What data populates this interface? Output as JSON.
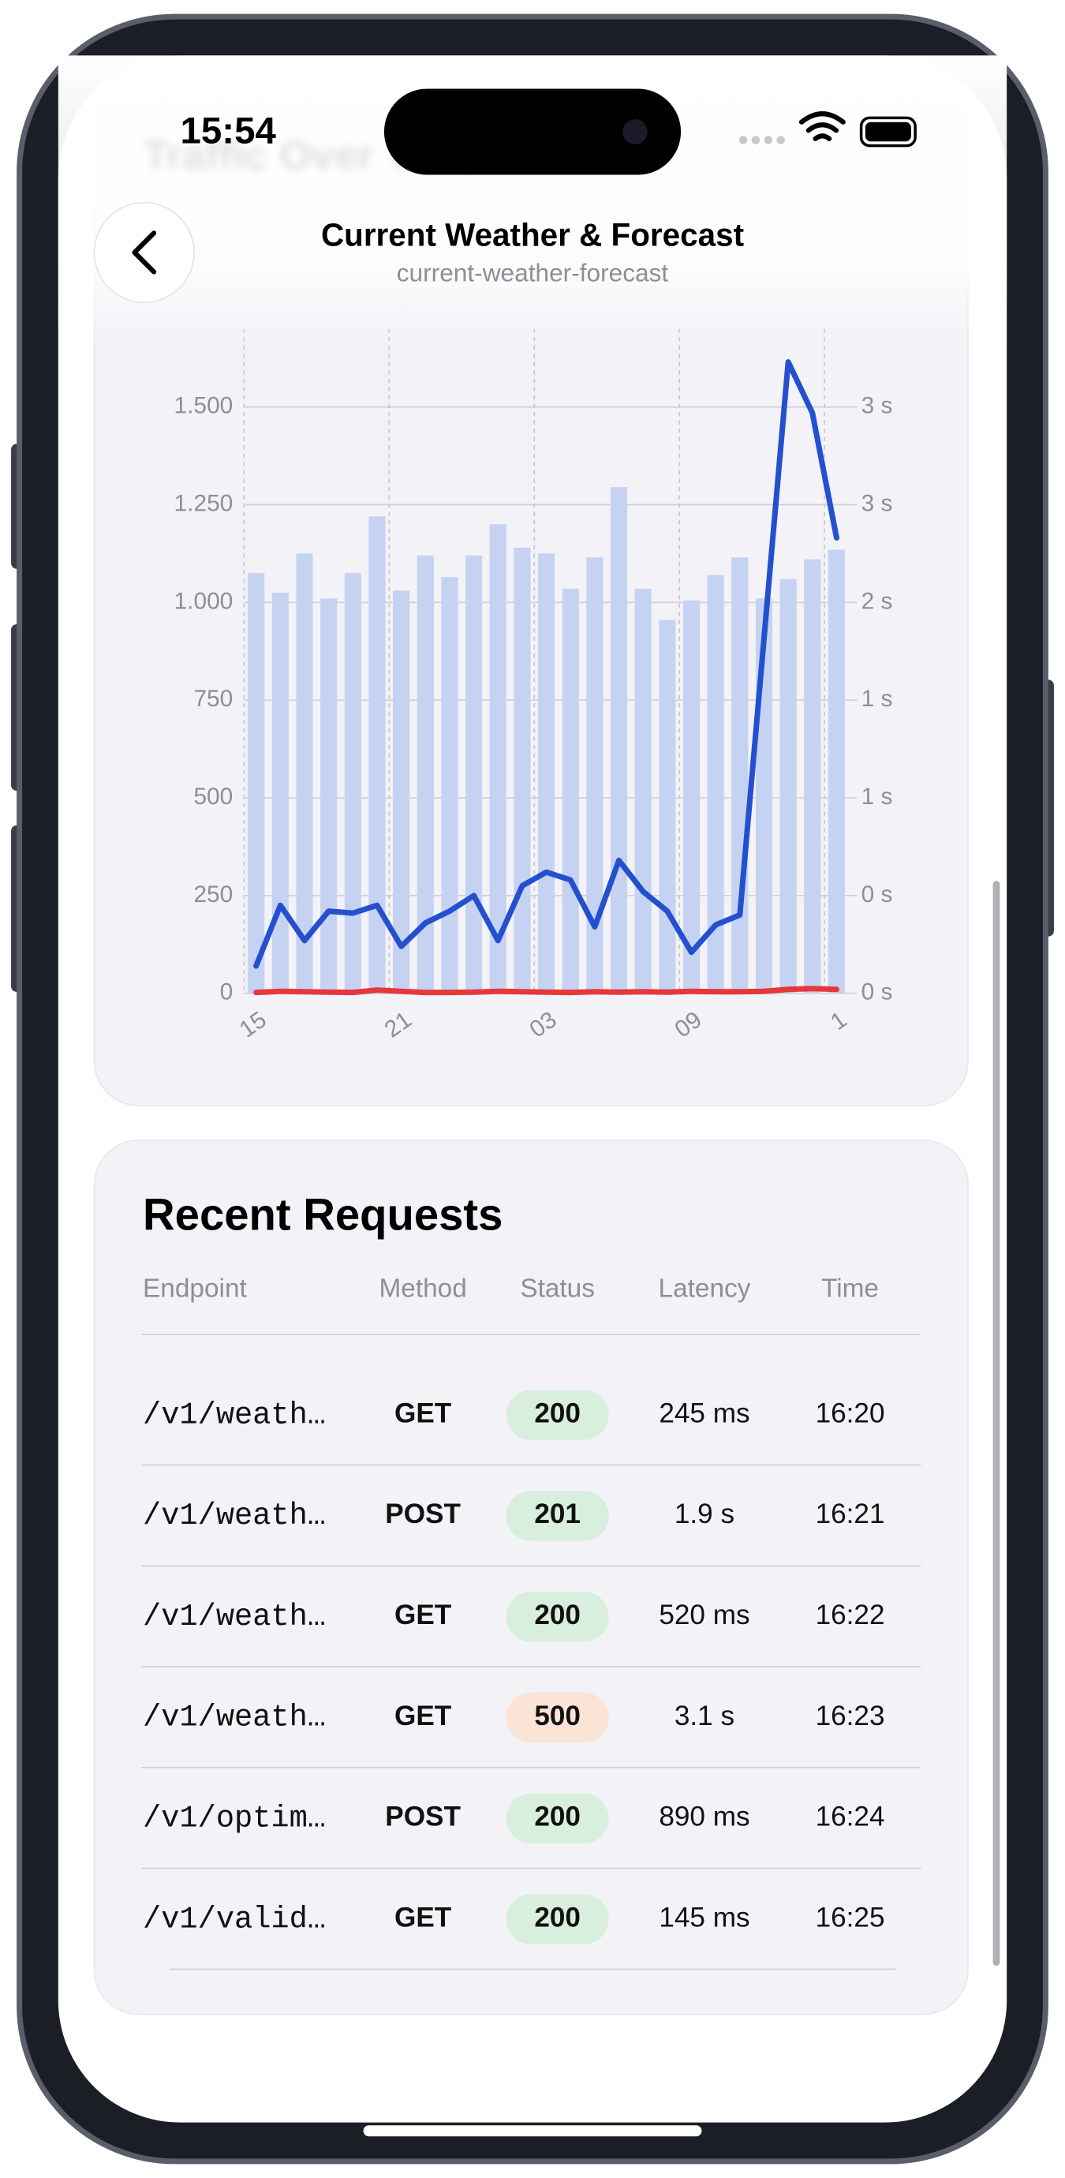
{
  "status_bar": {
    "time": "15:54"
  },
  "header": {
    "title": "Current Weather & Forecast",
    "subtitle": "current-weather-forecast"
  },
  "chart_data": {
    "type": "bar",
    "title": "Traffic Over Time",
    "categories": [
      "15",
      null,
      null,
      null,
      null,
      null,
      "21",
      null,
      null,
      null,
      null,
      null,
      "03",
      null,
      null,
      null,
      null,
      null,
      "09",
      null,
      null,
      null,
      null,
      null,
      "1"
    ],
    "series": [
      {
        "type": "bar",
        "color": "#c6d2f1",
        "values": [
          1075,
          1025,
          1125,
          1010,
          1075,
          1220,
          1030,
          1120,
          1065,
          1120,
          1200,
          1140,
          1125,
          1035,
          1115,
          1295,
          1035,
          955,
          1005,
          1070,
          1115,
          1010,
          1060,
          1110,
          1135
        ]
      },
      {
        "type": "line",
        "color": "#2450cf",
        "axis": "y2",
        "values": [
          0.14,
          0.45,
          0.27,
          0.42,
          0.41,
          0.45,
          0.24,
          0.36,
          0.42,
          0.5,
          0.27,
          0.55,
          0.62,
          0.58,
          0.34,
          0.68,
          0.52,
          0.42,
          0.21,
          0.35,
          0.4,
          1.82,
          3.23,
          2.97,
          2.33
        ]
      },
      {
        "type": "line",
        "color": "#e5383b",
        "values": [
          2,
          5,
          4,
          3,
          2,
          8,
          5,
          2,
          2,
          3,
          5,
          4,
          3,
          2,
          4,
          3,
          4,
          3,
          5,
          4,
          4,
          5,
          10,
          12,
          10
        ]
      }
    ],
    "ylim": [
      0,
      1700
    ],
    "yticks": [
      0,
      250,
      500,
      750,
      {
        "value": 1000,
        "label": "1.000"
      },
      {
        "value": 1250,
        "label": "1.250"
      },
      {
        "value": 1500,
        "label": "1.500"
      }
    ],
    "y2lim": [
      0,
      3.4
    ],
    "y2ticks": [
      {
        "value": 0,
        "label": "0 s"
      },
      {
        "value": 0.5,
        "label": "0 s"
      },
      {
        "value": 1,
        "label": "1 s"
      },
      {
        "value": 1.5,
        "label": "1 s"
      },
      {
        "value": 2,
        "label": "2 s"
      },
      {
        "value": 2.5,
        "label": "3 s"
      },
      {
        "value": 3,
        "label": "3 s"
      }
    ],
    "grid": true
  },
  "recent_requests": {
    "title": "Recent Requests",
    "columns": [
      "Endpoint",
      "Method",
      "Status",
      "Latency",
      "Time"
    ],
    "rows": [
      [
        "/v1/weath…",
        "GET",
        "200",
        "245 ms",
        "16:20"
      ],
      [
        "/v1/weath…",
        "POST",
        "201",
        "1.9 s",
        "16:21"
      ],
      [
        "/v1/weath…",
        "GET",
        "200",
        "520 ms",
        "16:22"
      ],
      [
        "/v1/weath…",
        "GET",
        "500",
        "3.1 s",
        "16:23"
      ],
      [
        "/v1/optim…",
        "POST",
        "200",
        "890 ms",
        "16:24"
      ],
      [
        "/v1/valid…",
        "GET",
        "200",
        "145 ms",
        "16:25"
      ]
    ]
  }
}
